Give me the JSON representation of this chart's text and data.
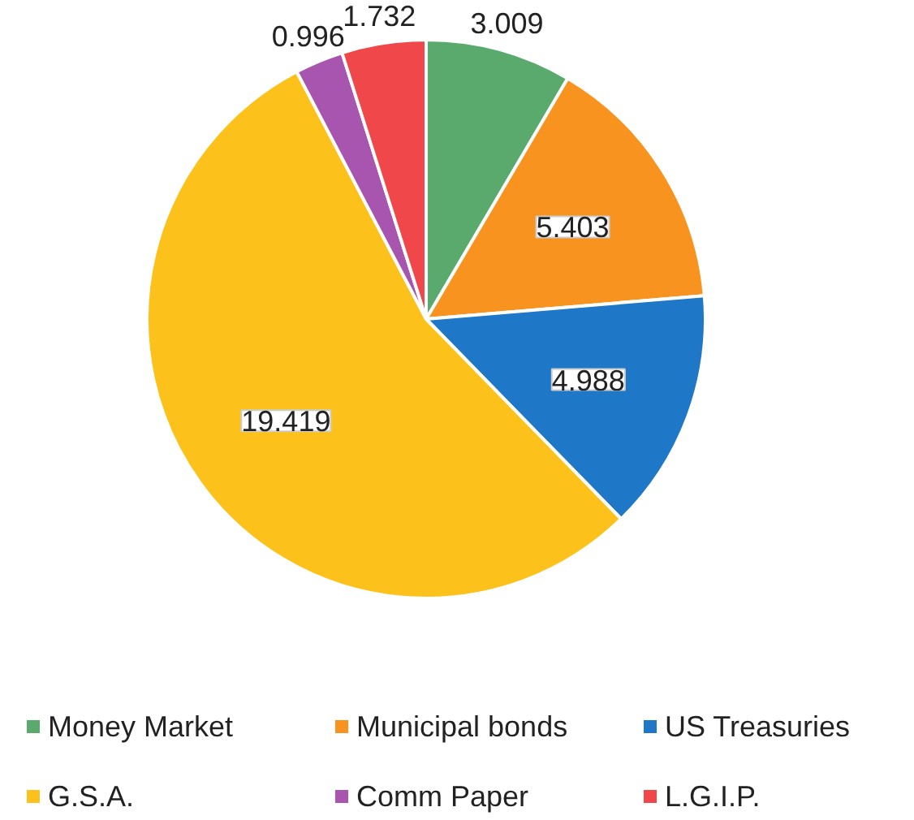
{
  "chart_data": {
    "type": "pie",
    "categories": [
      "Money Market",
      "Municipal bonds",
      "US Treasuries",
      "G.S.A.",
      "Comm Paper",
      "L.G.I.P."
    ],
    "values": [
      3.009,
      5.403,
      4.988,
      19.419,
      0.996,
      1.732
    ],
    "colors": [
      "#5aaa6e",
      "#f7931e",
      "#1f77c8",
      "#fcc21b",
      "#a855b0",
      "#f0474a"
    ],
    "data_labels": true,
    "legend": "bottom"
  }
}
